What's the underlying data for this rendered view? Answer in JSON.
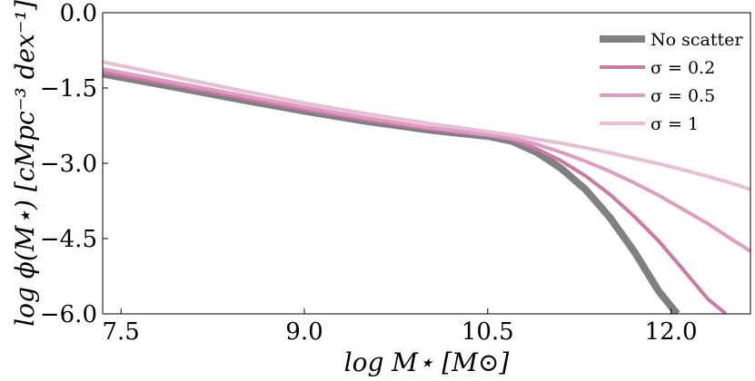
{
  "chart_data": {
    "type": "line",
    "xlabel": "log M⋆ [M⊙]",
    "ylabel": "log ϕ(M⋆) [cMpc⁻³ dex⁻¹]",
    "xlim": [
      7.35,
      12.65
    ],
    "ylim": [
      -6.0,
      0.0
    ],
    "xticks": [
      7.5,
      9.0,
      10.5,
      12.0
    ],
    "xtick_labels": [
      "7.5",
      "9.0",
      "10.5",
      "12.0"
    ],
    "yticks": [
      0.0,
      -1.5,
      -3.0,
      -4.5,
      -6.0
    ],
    "ytick_labels": [
      "0.0",
      "−1.5",
      "−3.0",
      "−4.5",
      "−6.0"
    ],
    "grid": false,
    "legend_position": "top-right",
    "series": [
      {
        "name": "No scatter",
        "color": "#808080",
        "width": 8,
        "x": [
          7.35,
          8.0,
          8.5,
          9.0,
          9.5,
          10.0,
          10.3,
          10.5,
          10.7,
          10.9,
          11.1,
          11.3,
          11.5,
          11.7,
          11.9,
          12.05
        ],
        "y": [
          -1.22,
          -1.51,
          -1.74,
          -1.96,
          -2.16,
          -2.33,
          -2.41,
          -2.46,
          -2.56,
          -2.78,
          -3.1,
          -3.52,
          -4.08,
          -4.76,
          -5.55,
          -6.0
        ]
      },
      {
        "name": "σ = 0.2",
        "color": "#cc79a7",
        "width": 4,
        "x": [
          7.35,
          8.0,
          8.5,
          9.0,
          9.5,
          10.0,
          10.3,
          10.5,
          10.7,
          10.9,
          11.1,
          11.3,
          11.5,
          11.7,
          11.9,
          12.1,
          12.3,
          12.45
        ],
        "y": [
          -1.18,
          -1.47,
          -1.7,
          -1.93,
          -2.13,
          -2.31,
          -2.39,
          -2.44,
          -2.53,
          -2.71,
          -2.95,
          -3.25,
          -3.62,
          -4.06,
          -4.55,
          -5.12,
          -5.7,
          -6.0
        ]
      },
      {
        "name": "σ = 0.5",
        "color": "#dd9dc2",
        "width": 4,
        "x": [
          7.35,
          8.0,
          8.5,
          9.0,
          9.5,
          10.0,
          10.3,
          10.5,
          10.7,
          10.9,
          11.1,
          11.3,
          11.5,
          11.7,
          11.9,
          12.1,
          12.3,
          12.5,
          12.65
        ],
        "y": [
          -1.12,
          -1.42,
          -1.65,
          -1.88,
          -2.09,
          -2.28,
          -2.37,
          -2.43,
          -2.5,
          -2.62,
          -2.78,
          -2.96,
          -3.16,
          -3.39,
          -3.64,
          -3.92,
          -4.2,
          -4.52,
          -4.75
        ]
      },
      {
        "name": "σ = 1",
        "color": "#e6bfd5",
        "width": 4,
        "x": [
          7.35,
          8.0,
          8.5,
          9.0,
          9.5,
          10.0,
          10.3,
          10.5,
          10.7,
          10.9,
          11.1,
          11.3,
          11.5,
          11.7,
          11.9,
          12.1,
          12.3,
          12.5,
          12.65
        ],
        "y": [
          -0.98,
          -1.31,
          -1.56,
          -1.8,
          -2.01,
          -2.2,
          -2.3,
          -2.37,
          -2.44,
          -2.52,
          -2.6,
          -2.69,
          -2.79,
          -2.9,
          -3.01,
          -3.13,
          -3.26,
          -3.4,
          -3.52
        ]
      }
    ]
  }
}
